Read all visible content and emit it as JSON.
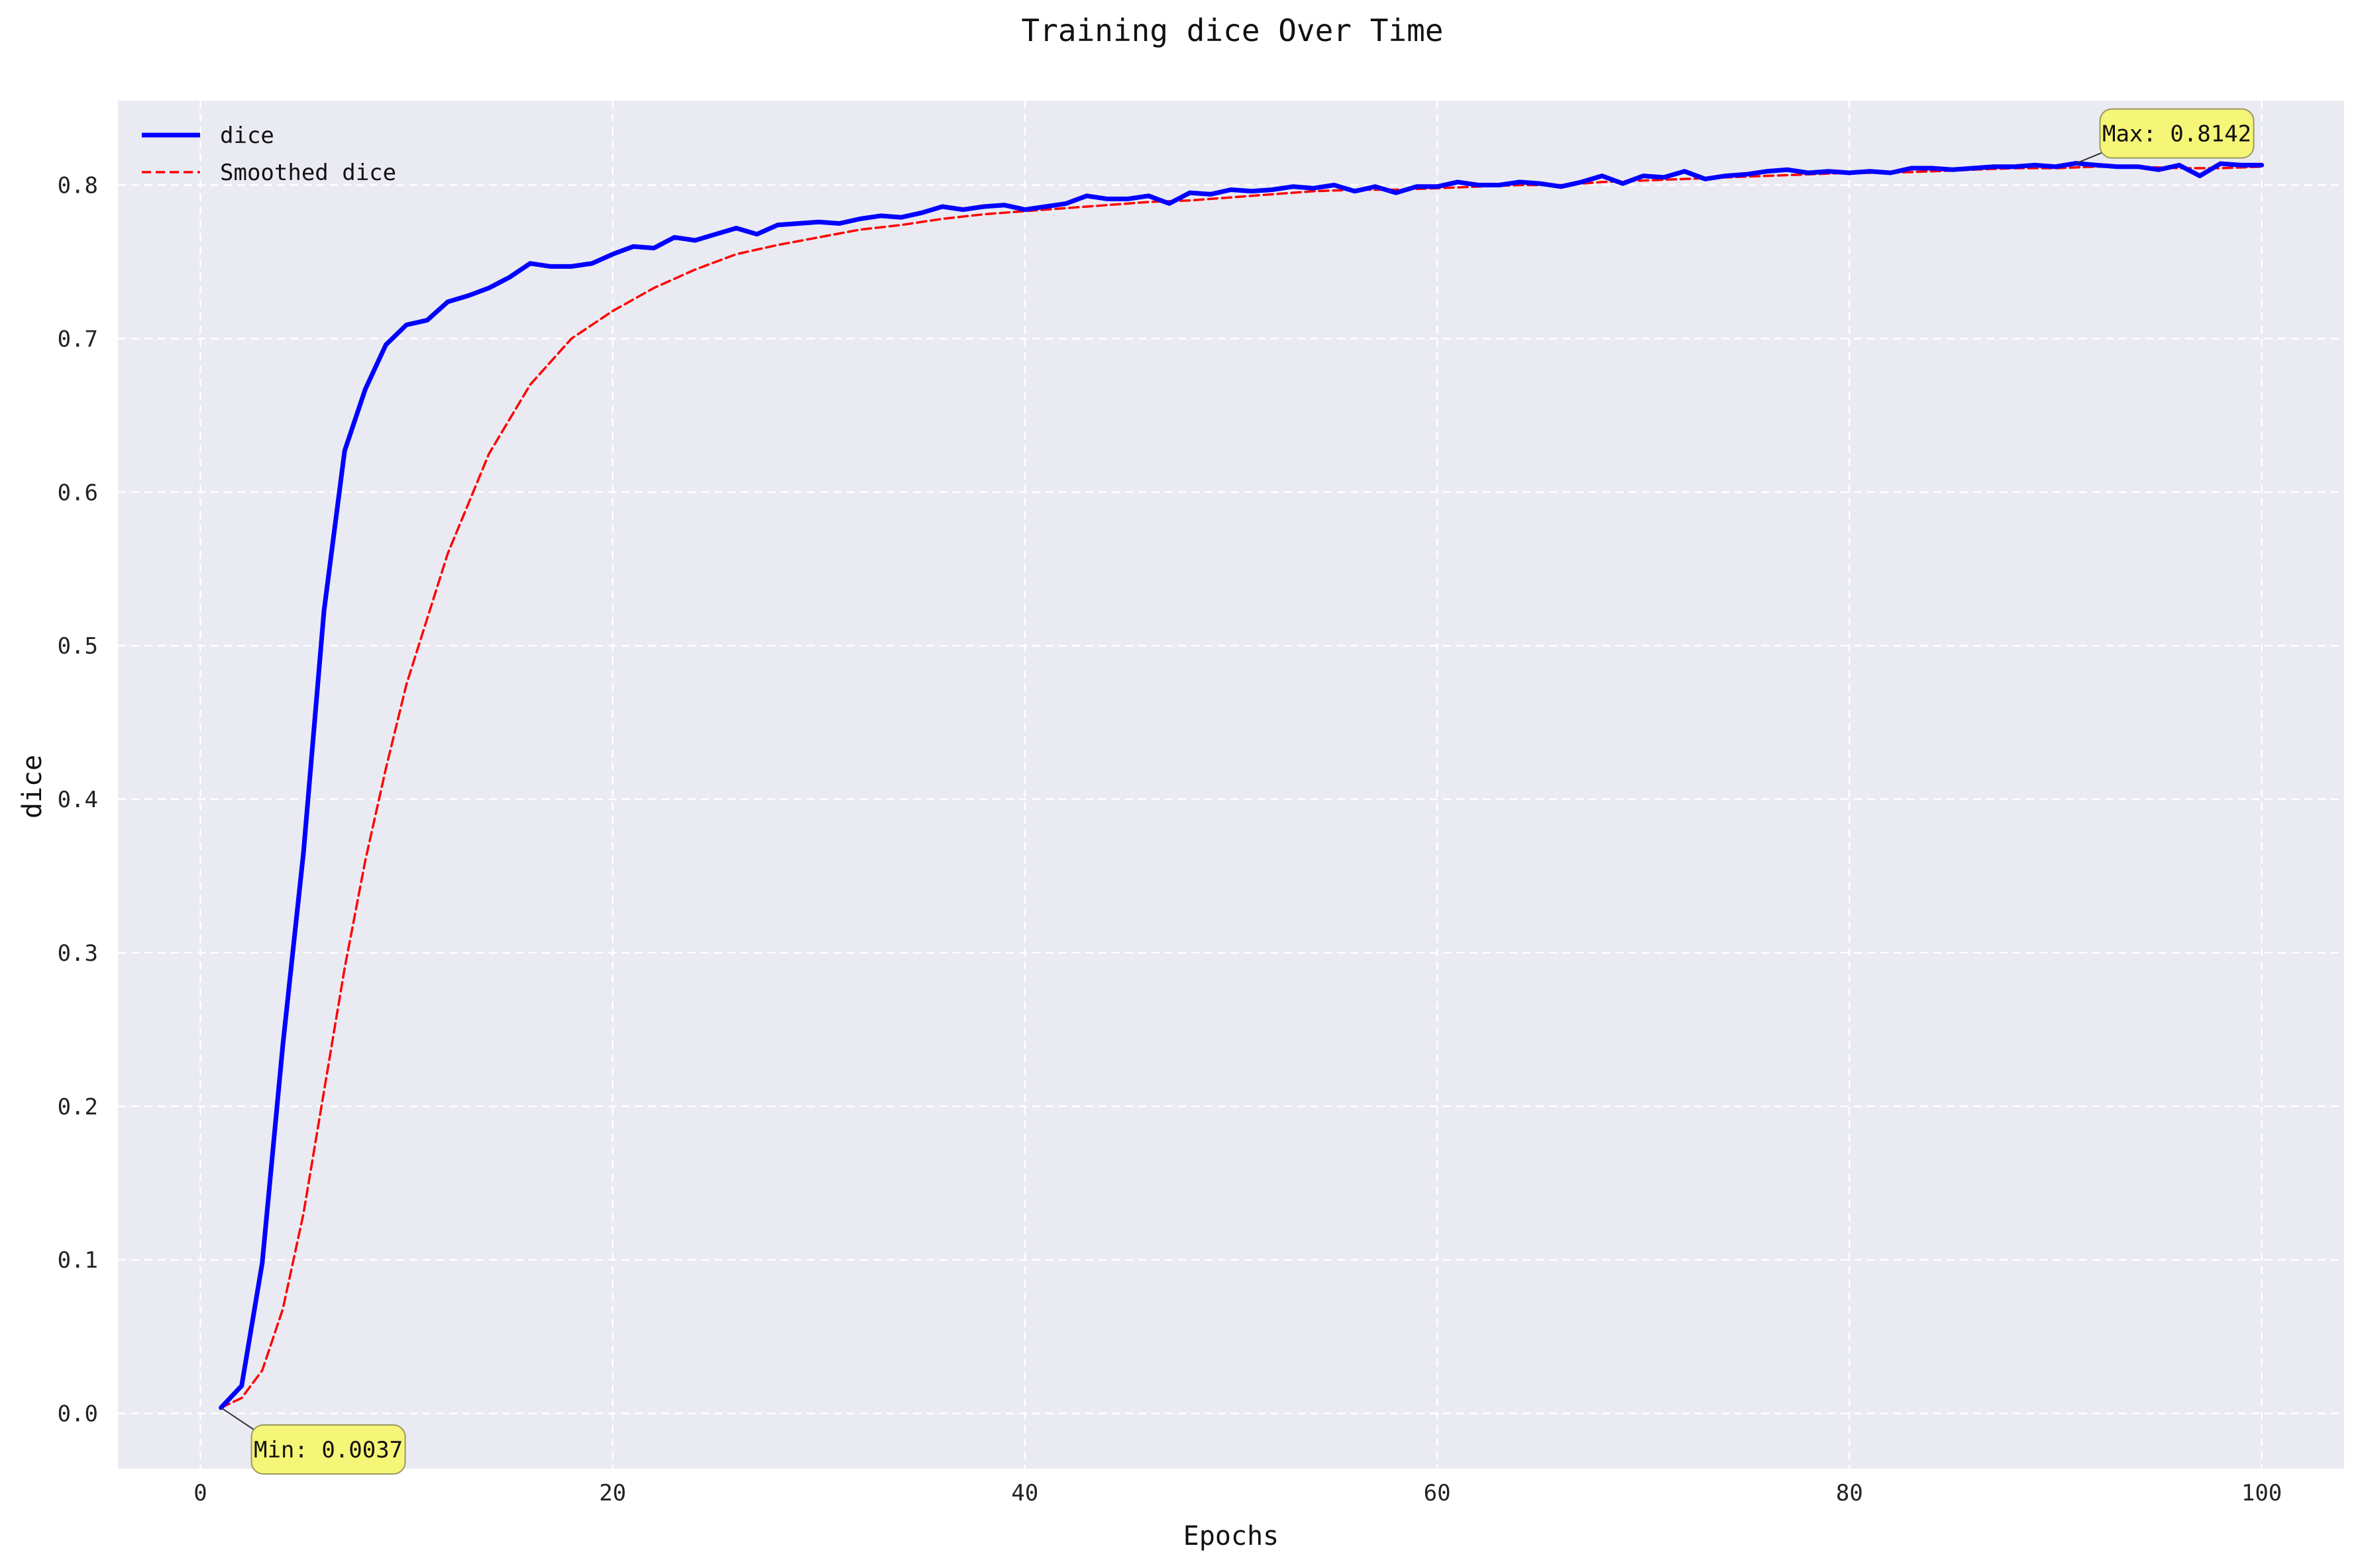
{
  "chart_data": {
    "type": "line",
    "title": "Training dice Over Time",
    "xlabel": "Epochs",
    "ylabel": "dice",
    "xlim": [
      -4,
      104
    ],
    "ylim": [
      -0.036,
      0.855
    ],
    "xticks": [
      0,
      20,
      40,
      60,
      80,
      100
    ],
    "xtick_labels": [
      "0",
      "20",
      "40",
      "60",
      "80",
      "100"
    ],
    "yticks": [
      0.0,
      0.1,
      0.2,
      0.3,
      0.4,
      0.5,
      0.6,
      0.7,
      0.8
    ],
    "ytick_labels": [
      "0.0",
      "0.1",
      "0.2",
      "0.3",
      "0.4",
      "0.5",
      "0.6",
      "0.7",
      "0.8"
    ],
    "grid": true,
    "legend_position": "top-left",
    "background": "#eaeaf2",
    "series": [
      {
        "name": "dice",
        "color": "#0000ff",
        "style": "solid",
        "x": [
          1,
          2,
          3,
          4,
          5,
          6,
          7,
          8,
          9,
          10,
          11,
          12,
          13,
          14,
          15,
          16,
          17,
          18,
          19,
          20,
          21,
          22,
          23,
          24,
          25,
          26,
          27,
          28,
          29,
          30,
          31,
          32,
          33,
          34,
          35,
          36,
          37,
          38,
          39,
          40,
          41,
          42,
          43,
          44,
          45,
          46,
          47,
          48,
          49,
          50,
          51,
          52,
          53,
          54,
          55,
          56,
          57,
          58,
          59,
          60,
          61,
          62,
          63,
          64,
          65,
          66,
          67,
          68,
          69,
          70,
          71,
          72,
          73,
          74,
          75,
          76,
          77,
          78,
          79,
          80,
          81,
          82,
          83,
          84,
          85,
          86,
          87,
          88,
          89,
          90,
          91,
          92,
          93,
          94,
          95,
          96,
          97,
          98,
          99,
          100
        ],
        "values": [
          0.0037,
          0.018,
          0.098,
          0.24,
          0.365,
          0.523,
          0.627,
          0.667,
          0.696,
          0.709,
          0.712,
          0.724,
          0.728,
          0.733,
          0.74,
          0.749,
          0.747,
          0.747,
          0.749,
          0.755,
          0.76,
          0.759,
          0.766,
          0.764,
          0.768,
          0.772,
          0.768,
          0.774,
          0.775,
          0.776,
          0.775,
          0.778,
          0.78,
          0.779,
          0.782,
          0.786,
          0.784,
          0.786,
          0.787,
          0.784,
          0.786,
          0.788,
          0.793,
          0.791,
          0.791,
          0.793,
          0.788,
          0.795,
          0.794,
          0.797,
          0.796,
          0.797,
          0.799,
          0.798,
          0.8,
          0.796,
          0.799,
          0.795,
          0.799,
          0.799,
          0.802,
          0.8,
          0.8,
          0.802,
          0.801,
          0.799,
          0.802,
          0.806,
          0.801,
          0.806,
          0.805,
          0.809,
          0.804,
          0.806,
          0.807,
          0.809,
          0.81,
          0.808,
          0.809,
          0.808,
          0.809,
          0.808,
          0.811,
          0.811,
          0.81,
          0.811,
          0.812,
          0.812,
          0.813,
          0.812,
          0.8142,
          0.813,
          0.812,
          0.812,
          0.81,
          0.813,
          0.806,
          0.814,
          0.813,
          0.813
        ]
      },
      {
        "name": "Smoothed dice",
        "color": "#ff0000",
        "style": "dashed",
        "x": [
          1,
          2,
          3,
          4,
          5,
          6,
          7,
          8,
          9,
          10,
          12,
          14,
          16,
          18,
          20,
          22,
          24,
          26,
          28,
          30,
          32,
          34,
          36,
          38,
          40,
          42,
          44,
          46,
          48,
          50,
          52,
          54,
          56,
          58,
          60,
          62,
          64,
          66,
          68,
          70,
          72,
          74,
          76,
          78,
          80,
          82,
          84,
          86,
          88,
          90,
          92,
          94,
          96,
          98,
          100
        ],
        "values": [
          0.0037,
          0.01,
          0.028,
          0.068,
          0.13,
          0.21,
          0.29,
          0.36,
          0.42,
          0.475,
          0.56,
          0.625,
          0.67,
          0.7,
          0.718,
          0.733,
          0.745,
          0.755,
          0.761,
          0.766,
          0.771,
          0.774,
          0.778,
          0.781,
          0.783,
          0.785,
          0.787,
          0.789,
          0.79,
          0.792,
          0.794,
          0.796,
          0.797,
          0.797,
          0.798,
          0.799,
          0.8,
          0.8,
          0.802,
          0.803,
          0.804,
          0.805,
          0.806,
          0.807,
          0.808,
          0.808,
          0.809,
          0.81,
          0.811,
          0.811,
          0.812,
          0.812,
          0.811,
          0.811,
          0.812
        ]
      }
    ],
    "annotations": [
      {
        "text": "Max: 0.8142",
        "x": 91,
        "y": 0.8142
      },
      {
        "text": "Min: 0.0037",
        "x": 1,
        "y": 0.0037
      }
    ],
    "annotation_color": "#f5f577"
  }
}
